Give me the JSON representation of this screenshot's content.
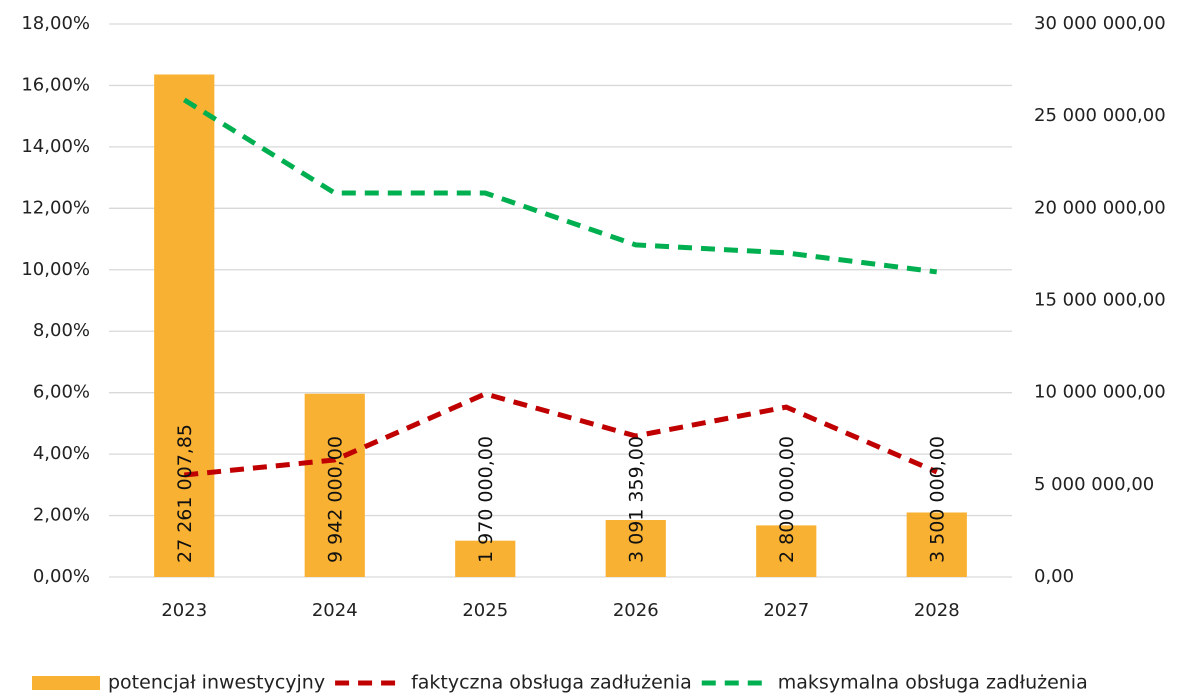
{
  "chart_data": {
    "type": "bar_line",
    "categories": [
      "2023",
      "2024",
      "2025",
      "2026",
      "2027",
      "2028"
    ],
    "series": [
      {
        "name": "potencjał inwestycyjny",
        "type": "bar",
        "axis": "y2",
        "color": "#f8b133",
        "values": [
          27261007.85,
          9942000,
          1970000,
          3091359,
          2800000,
          3500000
        ],
        "value_labels": [
          "27 261 007,85",
          "9 942 000,00",
          "1 970 000,00",
          "3 091 359,00",
          "2 800 000,00",
          "3 500 000,00"
        ]
      },
      {
        "name": "faktyczna obsługa zadłużenia",
        "type": "line",
        "axis": "y",
        "color": "#c00000",
        "values": [
          3.32,
          3.81,
          5.96,
          4.59,
          5.53,
          3.42
        ]
      },
      {
        "name": "maksymalna obsługa zadłużenia",
        "type": "line",
        "axis": "y",
        "color": "#00b050",
        "values": [
          15.53,
          12.5,
          12.5,
          10.81,
          10.55,
          9.93
        ]
      }
    ],
    "ylim": [
      0,
      18
    ],
    "yticks": [
      {
        "value": 0,
        "label": "0,00%"
      },
      {
        "value": 2,
        "label": "2,00%"
      },
      {
        "value": 4,
        "label": "4,00%"
      },
      {
        "value": 6,
        "label": "6,00%"
      },
      {
        "value": 8,
        "label": "8,00%"
      },
      {
        "value": 10,
        "label": "10,00%"
      },
      {
        "value": 12,
        "label": "12,00%"
      },
      {
        "value": 14,
        "label": "14,00%"
      },
      {
        "value": 16,
        "label": "16,00%"
      },
      {
        "value": 18,
        "label": "18,00%"
      }
    ],
    "y2lim": [
      0,
      30000000
    ],
    "y2ticks": [
      {
        "value": 0,
        "label": "0,00"
      },
      {
        "value": 5000000,
        "label": "5 000 000,00"
      },
      {
        "value": 10000000,
        "label": "10 000 000,00"
      },
      {
        "value": 15000000,
        "label": "15 000 000,00"
      },
      {
        "value": 20000000,
        "label": "20 000 000,00"
      },
      {
        "value": 25000000,
        "label": "25 000 000,00"
      },
      {
        "value": 30000000,
        "label": "30 000 000,00"
      }
    ],
    "grid": true,
    "legend": "bottom"
  }
}
